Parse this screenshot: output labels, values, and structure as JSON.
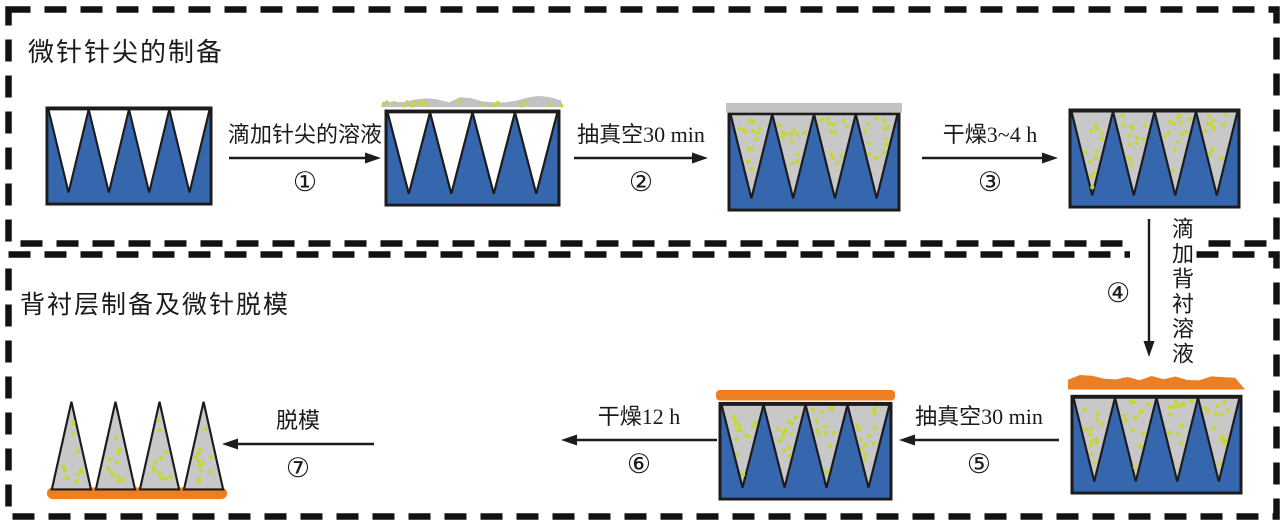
{
  "figure": {
    "sections": {
      "top": {
        "title": "微针针尖的制备"
      },
      "bottom": {
        "title": "背衬层制备及微针脱模"
      }
    },
    "steps": [
      {
        "label": "滴加针尖的溶液",
        "number": "①",
        "direction": "right"
      },
      {
        "label": "抽真空30 min",
        "number": "②",
        "direction": "right"
      },
      {
        "label": "干燥3~4 h",
        "number": "③",
        "direction": "right"
      },
      {
        "label": "滴加背衬溶液",
        "number": "④",
        "direction": "down"
      },
      {
        "label": "抽真空30 min",
        "number": "⑤",
        "direction": "left"
      },
      {
        "label": "干燥12 h",
        "number": "⑥",
        "direction": "left"
      },
      {
        "label": "脱模",
        "number": "⑦",
        "direction": "left"
      }
    ],
    "stages": [
      {
        "name": "empty-mold"
      },
      {
        "name": "mold-with-tip-solution-on-top"
      },
      {
        "name": "mold-tips-filled-after-vacuum"
      },
      {
        "name": "mold-tips-dried"
      },
      {
        "name": "mold-with-backing-solution"
      },
      {
        "name": "mold-backing-after-vacuum"
      },
      {
        "name": "demolded-microneedle-array"
      }
    ],
    "colors": {
      "mold_blue": "#3566ae",
      "needle_gray": "#c8c8c8",
      "solution_gray": "#c2c2c2",
      "drug_dot_green": "#c6d830",
      "backing_orange": "#ec7f22",
      "outline_black": "#1c1c1c",
      "border_black": "#111111"
    }
  }
}
